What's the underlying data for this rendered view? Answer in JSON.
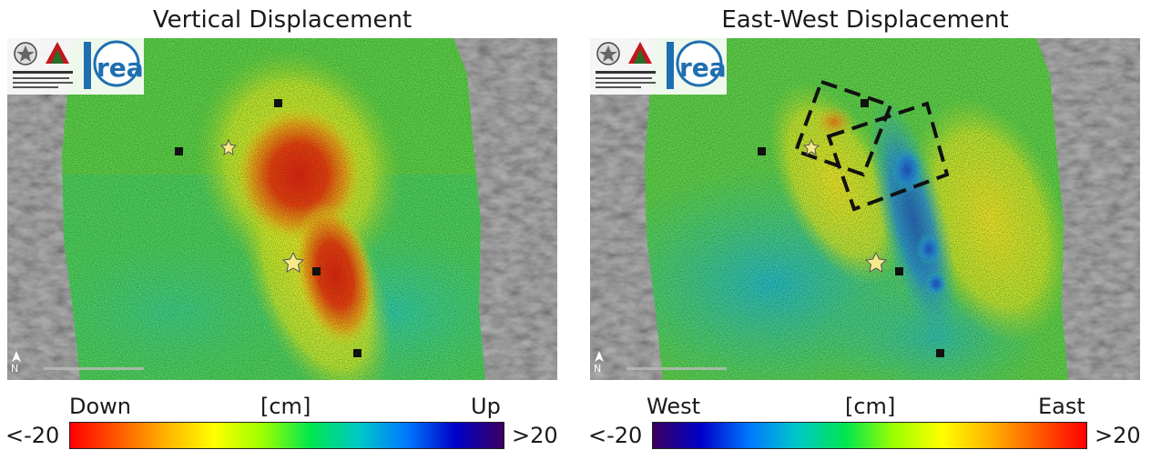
{
  "panels": [
    {
      "title": "Vertical Displacement",
      "legend": {
        "left_word": "Down",
        "unit": "[cm]",
        "right_word": "Up",
        "min_label": "<-20",
        "max_label": ">20",
        "colors": [
          "#ff0000",
          "#ff5a00",
          "#ffb400",
          "#ffff00",
          "#9aff00",
          "#00e650",
          "#00c8c8",
          "#0078ff",
          "#0000c8",
          "#3a0060"
        ]
      }
    },
    {
      "title": "East-West Displacement",
      "legend": {
        "left_word": "West",
        "unit": "[cm]",
        "right_word": "East",
        "min_label": "<-20",
        "max_label": ">20",
        "colors": [
          "#3a0060",
          "#0000c8",
          "#0078ff",
          "#00c8c8",
          "#00e650",
          "#9aff00",
          "#ffff00",
          "#ffb400",
          "#ff5a00",
          "#ff0000"
        ]
      }
    }
  ],
  "map_labels": {
    "north": "N",
    "logo_text": "rea"
  },
  "icons": {
    "north_arrow": "north-arrow-icon",
    "epicenter": "star-icon",
    "town": "square-marker-icon",
    "fault": "dashed-rectangle"
  }
}
